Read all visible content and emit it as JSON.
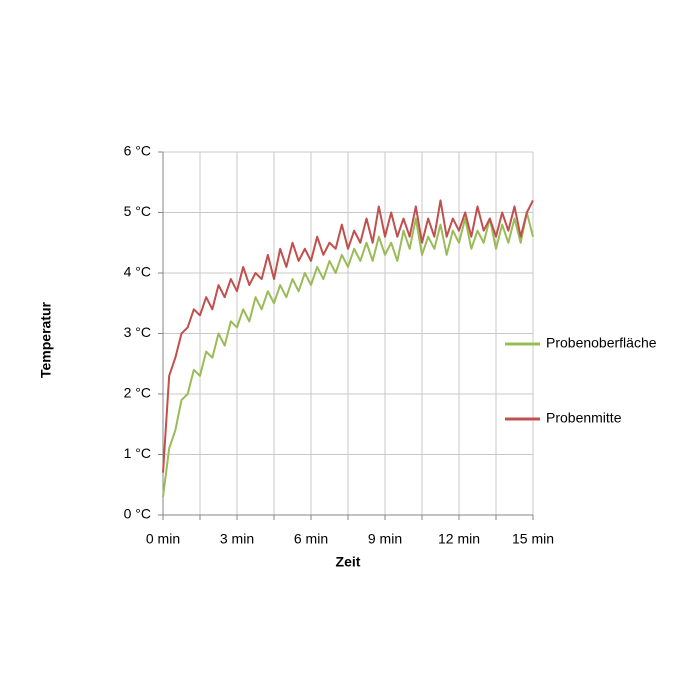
{
  "chart_data": {
    "type": "line",
    "x_label": "Zeit",
    "y_label": "Temperatur",
    "x": [
      0,
      0.25,
      0.5,
      0.75,
      1,
      1.25,
      1.5,
      1.75,
      2,
      2.25,
      2.5,
      2.75,
      3,
      3.25,
      3.5,
      3.75,
      4,
      4.25,
      4.5,
      4.75,
      5,
      5.25,
      5.5,
      5.75,
      6,
      6.25,
      6.5,
      6.75,
      7,
      7.25,
      7.5,
      7.75,
      8,
      8.25,
      8.5,
      8.75,
      9,
      9.25,
      9.5,
      9.75,
      10,
      10.25,
      10.5,
      10.75,
      11,
      11.25,
      11.5,
      11.75,
      12,
      12.25,
      12.5,
      12.75,
      13,
      13.25,
      13.5,
      13.75,
      14,
      14.25,
      14.5,
      14.75,
      15
    ],
    "series": [
      {
        "name": "Probenoberfläche",
        "color": "#9bbb59",
        "values": [
          0.3,
          1.1,
          1.4,
          1.9,
          2.0,
          2.4,
          2.3,
          2.7,
          2.6,
          3.0,
          2.8,
          3.2,
          3.1,
          3.4,
          3.2,
          3.6,
          3.4,
          3.7,
          3.5,
          3.8,
          3.6,
          3.9,
          3.7,
          4.0,
          3.8,
          4.1,
          3.9,
          4.2,
          4.0,
          4.3,
          4.1,
          4.4,
          4.2,
          4.5,
          4.2,
          4.6,
          4.3,
          4.5,
          4.2,
          4.7,
          4.4,
          4.9,
          4.3,
          4.6,
          4.4,
          4.8,
          4.3,
          4.7,
          4.5,
          4.9,
          4.4,
          4.7,
          4.5,
          4.9,
          4.4,
          4.8,
          4.5,
          4.9,
          4.5,
          5.0,
          4.6
        ]
      },
      {
        "name": "Probenmitte",
        "color": "#c0504d",
        "values": [
          0.7,
          2.3,
          2.6,
          3.0,
          3.1,
          3.4,
          3.3,
          3.6,
          3.4,
          3.8,
          3.6,
          3.9,
          3.7,
          4.1,
          3.8,
          4.0,
          3.9,
          4.3,
          3.9,
          4.4,
          4.1,
          4.5,
          4.2,
          4.4,
          4.2,
          4.6,
          4.3,
          4.5,
          4.4,
          4.8,
          4.4,
          4.7,
          4.5,
          4.9,
          4.5,
          5.1,
          4.6,
          5.0,
          4.6,
          4.9,
          4.6,
          5.1,
          4.5,
          4.9,
          4.6,
          5.2,
          4.6,
          4.9,
          4.7,
          5.0,
          4.6,
          5.1,
          4.7,
          4.9,
          4.6,
          5.0,
          4.7,
          5.1,
          4.6,
          5.0,
          5.2
        ]
      }
    ],
    "xlim": [
      0,
      15
    ],
    "xticks": [
      {
        "value": 0,
        "label": "0 min"
      },
      {
        "value": 3,
        "label": "3 min"
      },
      {
        "value": 6,
        "label": "6 min"
      },
      {
        "value": 9,
        "label": "9 min"
      },
      {
        "value": 12,
        "label": "12 min"
      },
      {
        "value": 15,
        "label": "15 min"
      }
    ],
    "minor_xticks": [
      1.5,
      4.5,
      7.5,
      10.5,
      13.5
    ],
    "ylim": [
      0,
      6
    ],
    "yticks": [
      {
        "value": 0,
        "label": "0 °C"
      },
      {
        "value": 1,
        "label": "1 °C"
      },
      {
        "value": 2,
        "label": "2 °C"
      },
      {
        "value": 3,
        "label": "3 °C"
      },
      {
        "value": 4,
        "label": "4 °C"
      },
      {
        "value": 5,
        "label": "5 °C"
      },
      {
        "value": 6,
        "label": "6 °C"
      }
    ],
    "grid": true,
    "legend": "right"
  }
}
